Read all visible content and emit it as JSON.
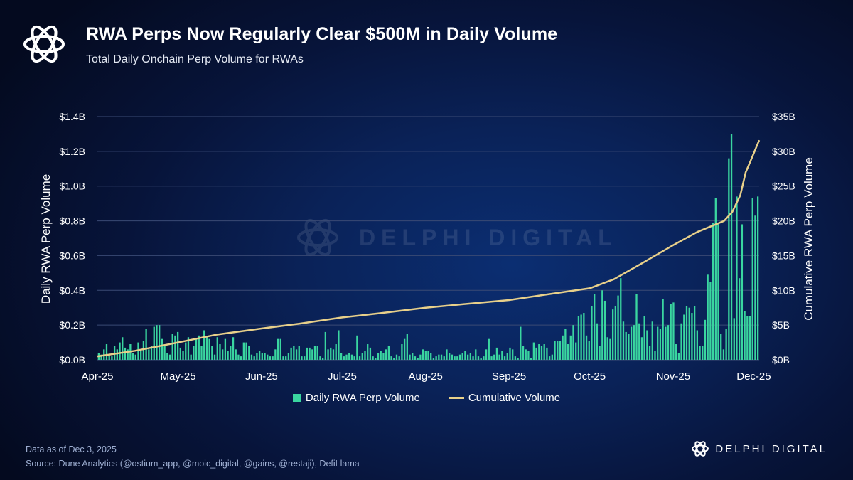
{
  "header": {
    "title": "RWA Perps Now Regularly Clear $500M in Daily Volume",
    "subtitle": "Total Daily Onchain Perp Volume for RWAs",
    "logo_icon": "delphi-knot-icon"
  },
  "watermark": {
    "text": "DELPHI DIGITAL"
  },
  "footer": {
    "data_note": "Data as of Dec 3, 2025",
    "source": "Source: Dune Analytics (@ostium_app, @moic_digital, @gains, @restaji), DefiLlama",
    "brand": "DELPHI DIGITAL"
  },
  "colors": {
    "bar": "#3ad6a0",
    "line": "#e8d08a",
    "grid": "#3a4a74"
  },
  "chart_data": {
    "type": "bar",
    "title": "RWA Perps Now Regularly Clear $500M in Daily Volume",
    "subtitle": "Total Daily Onchain Perp Volume for RWAs",
    "ylabel": "Daily RWA Perp Volume",
    "y2label": "Cumulative RWA Perp Volume",
    "ylim": [
      0,
      1.4
    ],
    "y2lim": [
      0,
      35
    ],
    "y_ticks": [
      "$0.0B",
      "$0.2B",
      "$0.4B",
      "$0.6B",
      "$0.8B",
      "$1.0B",
      "$1.2B",
      "$1.4B"
    ],
    "y2_ticks": [
      "$0B",
      "$5B",
      "$10B",
      "$15B",
      "$20B",
      "$25B",
      "$30B",
      "$35B"
    ],
    "x_ticks": [
      "Apr-25",
      "May-25",
      "Jun-25",
      "Jul-25",
      "Aug-25",
      "Sep-25",
      "Oct-25",
      "Nov-25",
      "Dec-25"
    ],
    "grid": true,
    "legend_position": "bottom",
    "series": [
      {
        "name": "Daily RWA Perp Volume",
        "type": "bar",
        "axis": "left",
        "units": "$B",
        "values": [
          0.04,
          0.03,
          0.06,
          0.09,
          0.03,
          0.02,
          0.08,
          0.06,
          0.1,
          0.13,
          0.07,
          0.06,
          0.09,
          0.04,
          0.03,
          0.1,
          0.05,
          0.11,
          0.18,
          0.06,
          0.08,
          0.19,
          0.2,
          0.2,
          0.12,
          0.08,
          0.04,
          0.03,
          0.15,
          0.14,
          0.16,
          0.07,
          0.05,
          0.1,
          0.13,
          0.03,
          0.08,
          0.12,
          0.14,
          0.08,
          0.17,
          0.13,
          0.12,
          0.08,
          0.03,
          0.13,
          0.09,
          0.06,
          0.12,
          0.05,
          0.08,
          0.13,
          0.06,
          0.03,
          0.02,
          0.1,
          0.1,
          0.08,
          0.03,
          0.02,
          0.04,
          0.05,
          0.04,
          0.04,
          0.03,
          0.02,
          0.02,
          0.06,
          0.12,
          0.12,
          0.02,
          0.02,
          0.04,
          0.07,
          0.08,
          0.06,
          0.08,
          0.02,
          0.02,
          0.07,
          0.07,
          0.06,
          0.08,
          0.08,
          0.02,
          0.01,
          0.16,
          0.06,
          0.07,
          0.06,
          0.09,
          0.17,
          0.04,
          0.02,
          0.03,
          0.04,
          0.03,
          0.02,
          0.14,
          0.02,
          0.04,
          0.05,
          0.09,
          0.07,
          0.02,
          0.01,
          0.04,
          0.05,
          0.04,
          0.06,
          0.08,
          0.02,
          0.01,
          0.03,
          0.02,
          0.09,
          0.12,
          0.15,
          0.03,
          0.04,
          0.02,
          0.01,
          0.03,
          0.06,
          0.05,
          0.05,
          0.04,
          0.01,
          0.02,
          0.03,
          0.03,
          0.02,
          0.06,
          0.04,
          0.03,
          0.02,
          0.02,
          0.03,
          0.04,
          0.05,
          0.03,
          0.04,
          0.02,
          0.06,
          0.02,
          0.01,
          0.02,
          0.06,
          0.12,
          0.02,
          0.03,
          0.07,
          0.03,
          0.05,
          0.02,
          0.04,
          0.07,
          0.06,
          0.02,
          0.01,
          0.19,
          0.08,
          0.06,
          0.05,
          0.01,
          0.1,
          0.07,
          0.09,
          0.08,
          0.09,
          0.07,
          0.02,
          0.03,
          0.11,
          0.11,
          0.11,
          0.14,
          0.18,
          0.09,
          0.14,
          0.2,
          0.1,
          0.25,
          0.26,
          0.27,
          0.14,
          0.11,
          0.31,
          0.38,
          0.21,
          0.08,
          0.4,
          0.34,
          0.13,
          0.12,
          0.29,
          0.31,
          0.37,
          0.47,
          0.22,
          0.16,
          0.15,
          0.19,
          0.2,
          0.38,
          0.21,
          0.13,
          0.25,
          0.17,
          0.08,
          0.22,
          0.05,
          0.19,
          0.18,
          0.35,
          0.19,
          0.2,
          0.32,
          0.33,
          0.09,
          0.04,
          0.21,
          0.26,
          0.31,
          0.3,
          0.27,
          0.31,
          0.17,
          0.08,
          0.08,
          0.23,
          0.49,
          0.45,
          0.79,
          0.93,
          0.78,
          0.15,
          0.06,
          0.18,
          1.16,
          1.3,
          0.24,
          0.94,
          0.47,
          0.78,
          0.28,
          0.25,
          0.25,
          0.93,
          0.83,
          0.94
        ]
      },
      {
        "name": "Cumulative Volume",
        "type": "line",
        "axis": "right",
        "units": "$B",
        "points": [
          [
            "2025-04-01",
            0.5
          ],
          [
            "2025-04-15",
            1.3
          ],
          [
            "2025-05-01",
            2.5
          ],
          [
            "2025-05-15",
            3.6
          ],
          [
            "2025-06-01",
            4.5
          ],
          [
            "2025-06-15",
            5.2
          ],
          [
            "2025-07-01",
            6.1
          ],
          [
            "2025-07-15",
            6.7
          ],
          [
            "2025-08-01",
            7.5
          ],
          [
            "2025-08-15",
            8.0
          ],
          [
            "2025-09-01",
            8.6
          ],
          [
            "2025-09-15",
            9.4
          ],
          [
            "2025-10-01",
            10.3
          ],
          [
            "2025-10-10",
            11.6
          ],
          [
            "2025-10-20",
            13.8
          ],
          [
            "2025-11-01",
            16.5
          ],
          [
            "2025-11-10",
            18.4
          ],
          [
            "2025-11-20",
            20.0
          ],
          [
            "2025-11-23",
            21.3
          ],
          [
            "2025-11-26",
            23.7
          ],
          [
            "2025-11-28",
            27.0
          ],
          [
            "2025-11-30",
            28.8
          ],
          [
            "2025-12-03",
            31.6
          ]
        ]
      }
    ]
  }
}
